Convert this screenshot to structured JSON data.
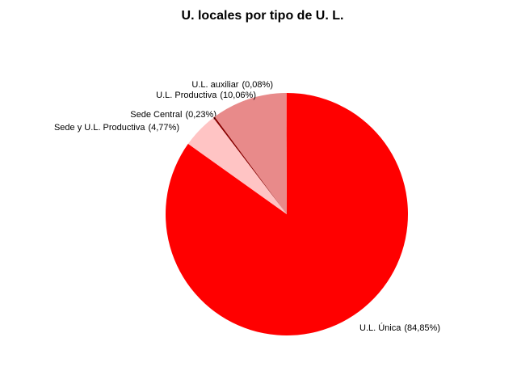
{
  "chart_data": {
    "type": "pie",
    "title": "U. locales por tipo de U. L.",
    "categories": [
      "U.L. Única",
      "Sede y U.L. Productiva",
      "Sede Central",
      "U.L. Productiva",
      "U.L. auxiliar"
    ],
    "values": [
      84.85,
      4.77,
      0.23,
      10.06,
      0.08
    ],
    "value_labels": [
      "(84,85%)",
      "(4,77%)",
      "(0,23%)",
      "(10,06%)",
      "(0,08%)"
    ],
    "colors": [
      "#ff0000",
      "#ffc4c4",
      "#8b0000",
      "#e88a8a",
      "#ff6060"
    ]
  }
}
